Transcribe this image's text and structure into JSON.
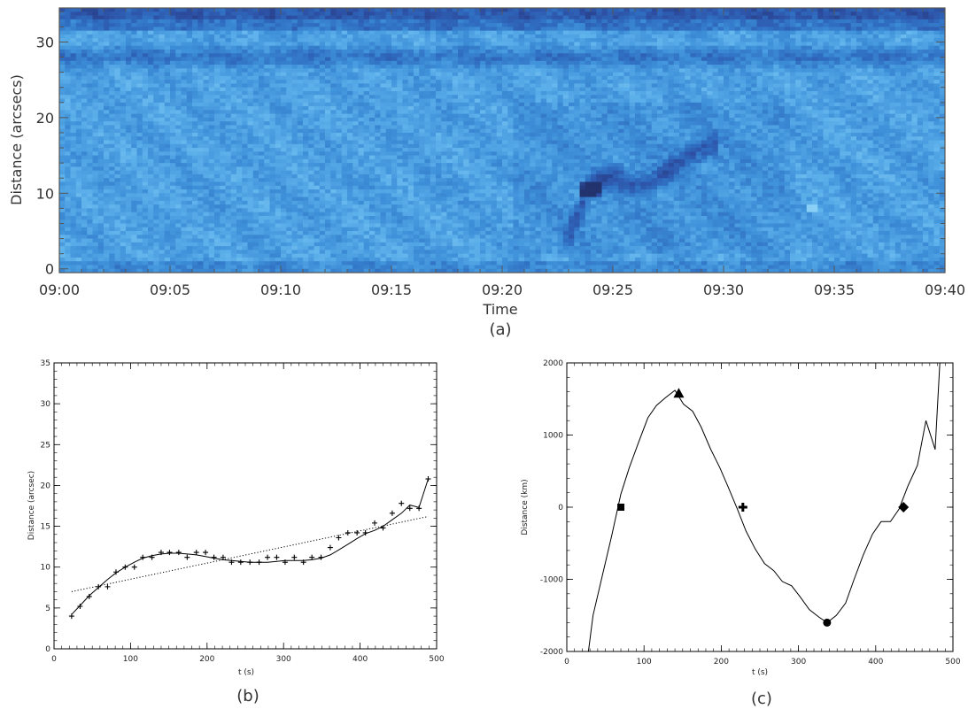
{
  "chart_data": [
    {
      "type": "heatmap",
      "panel": "(a)",
      "xlabel": "Time",
      "ylabel": "Distance (arcsecs)",
      "x_ticks": [
        "09:00",
        "09:05",
        "09:10",
        "09:15",
        "09:20",
        "09:25",
        "09:30",
        "09:35",
        "09:40"
      ],
      "x_range_minutes": [
        0,
        40
      ],
      "y_ticks": [
        0,
        10,
        20,
        30
      ],
      "ylim": [
        -0.5,
        34.5
      ],
      "colormap": [
        "#23336e",
        "#2d4ea2",
        "#2f6cc0",
        "#3d8fd8",
        "#5cb0ea",
        "#8ad0f6"
      ],
      "features": {
        "dark_band_top_distance": [
          26.5,
          29.5
        ],
        "oscillating_dark_track": [
          [
            23.0,
            4.5
          ],
          [
            23.3,
            6.5
          ],
          [
            23.6,
            8.5
          ],
          [
            23.9,
            10.5
          ],
          [
            24.3,
            11.6
          ],
          [
            24.8,
            12.2
          ],
          [
            25.3,
            12.0
          ],
          [
            25.8,
            11.4
          ],
          [
            26.2,
            11.0
          ],
          [
            26.7,
            11.3
          ],
          [
            27.2,
            12.3
          ],
          [
            27.7,
            13.5
          ],
          [
            28.2,
            14.5
          ],
          [
            28.7,
            15.3
          ],
          [
            29.2,
            16.0
          ],
          [
            29.6,
            16.4
          ]
        ]
      }
    },
    {
      "type": "scatter",
      "panel": "(b)",
      "xlabel": "t (s)",
      "ylabel": "Distance (arcsec)",
      "xlim": [
        0,
        500
      ],
      "ylim": [
        0,
        35
      ],
      "x_ticks": [
        0,
        100,
        200,
        300,
        400,
        500
      ],
      "y_ticks": [
        0,
        5,
        10,
        15,
        20,
        25,
        30,
        35
      ],
      "series": [
        {
          "style": "plus-markers",
          "x": [
            23,
            34,
            46,
            58,
            70,
            81,
            93,
            105,
            116,
            128,
            140,
            151,
            163,
            174,
            186,
            198,
            209,
            221,
            232,
            244,
            256,
            268,
            279,
            291,
            302,
            314,
            326,
            337,
            349,
            361,
            372,
            384,
            396,
            407,
            419,
            430,
            442,
            454,
            465,
            477,
            489
          ],
          "y": [
            4.0,
            5.2,
            6.4,
            7.6,
            7.6,
            9.4,
            10.0,
            10.0,
            11.2,
            11.2,
            11.8,
            11.8,
            11.8,
            11.2,
            11.8,
            11.8,
            11.2,
            11.2,
            10.6,
            10.6,
            10.6,
            10.6,
            11.2,
            11.2,
            10.6,
            11.2,
            10.6,
            11.2,
            11.2,
            12.4,
            13.6,
            14.2,
            14.2,
            14.2,
            15.4,
            14.8,
            16.6,
            17.8,
            17.2,
            17.2,
            20.8
          ]
        },
        {
          "style": "solid-line",
          "x": [
            23,
            34,
            46,
            58,
            70,
            81,
            93,
            105,
            116,
            128,
            140,
            151,
            163,
            174,
            186,
            198,
            209,
            221,
            232,
            244,
            256,
            268,
            279,
            291,
            302,
            314,
            326,
            337,
            349,
            361,
            372,
            384,
            396,
            407,
            419,
            430,
            442,
            454,
            465,
            477,
            489
          ],
          "y": [
            4.2,
            5.3,
            6.5,
            7.5,
            8.5,
            9.3,
            10.0,
            10.6,
            11.1,
            11.4,
            11.6,
            11.7,
            11.7,
            11.6,
            11.5,
            11.3,
            11.1,
            10.9,
            10.8,
            10.7,
            10.6,
            10.6,
            10.6,
            10.7,
            10.8,
            10.8,
            10.8,
            10.9,
            11.1,
            11.5,
            12.1,
            12.8,
            13.5,
            14.1,
            14.5,
            15.0,
            15.8,
            16.6,
            17.6,
            17.3,
            20.8
          ]
        },
        {
          "style": "dotted-line",
          "x": [
            23,
            489
          ],
          "y": [
            7.0,
            16.2
          ]
        }
      ]
    },
    {
      "type": "line",
      "panel": "(c)",
      "xlabel": "t (s)",
      "ylabel": "Distance (km)",
      "xlim": [
        0,
        500
      ],
      "ylim": [
        -2000,
        2000
      ],
      "x_ticks": [
        0,
        100,
        200,
        300,
        400,
        500
      ],
      "y_ticks": [
        -2000,
        -1000,
        0,
        1000,
        2000
      ],
      "series": [
        {
          "style": "solid-line",
          "x": [
            28,
            34,
            46,
            58,
            70,
            81,
            93,
            105,
            116,
            128,
            140,
            151,
            163,
            174,
            186,
            198,
            209,
            221,
            232,
            244,
            256,
            268,
            279,
            291,
            302,
            314,
            326,
            337,
            349,
            361,
            372,
            384,
            396,
            407,
            419,
            430,
            442,
            454,
            465,
            477,
            483
          ],
          "y": [
            -2000,
            -1500,
            -950,
            -400,
            180,
            550,
            900,
            1240,
            1410,
            1520,
            1620,
            1430,
            1330,
            1110,
            810,
            550,
            280,
            -30,
            -330,
            -580,
            -780,
            -880,
            -1030,
            -1090,
            -1240,
            -1420,
            -1520,
            -1600,
            -1500,
            -1330,
            -1000,
            -660,
            -370,
            -200,
            -200,
            -30,
            300,
            580,
            1200,
            800,
            2000
          ]
        }
      ],
      "markers": [
        {
          "shape": "square",
          "x": 70,
          "y": 0
        },
        {
          "shape": "triangle",
          "x": 145,
          "y": 1580
        },
        {
          "shape": "plus",
          "x": 228,
          "y": 0
        },
        {
          "shape": "circle",
          "x": 337,
          "y": -1600
        },
        {
          "shape": "diamond",
          "x": 436,
          "y": 0
        }
      ]
    }
  ]
}
